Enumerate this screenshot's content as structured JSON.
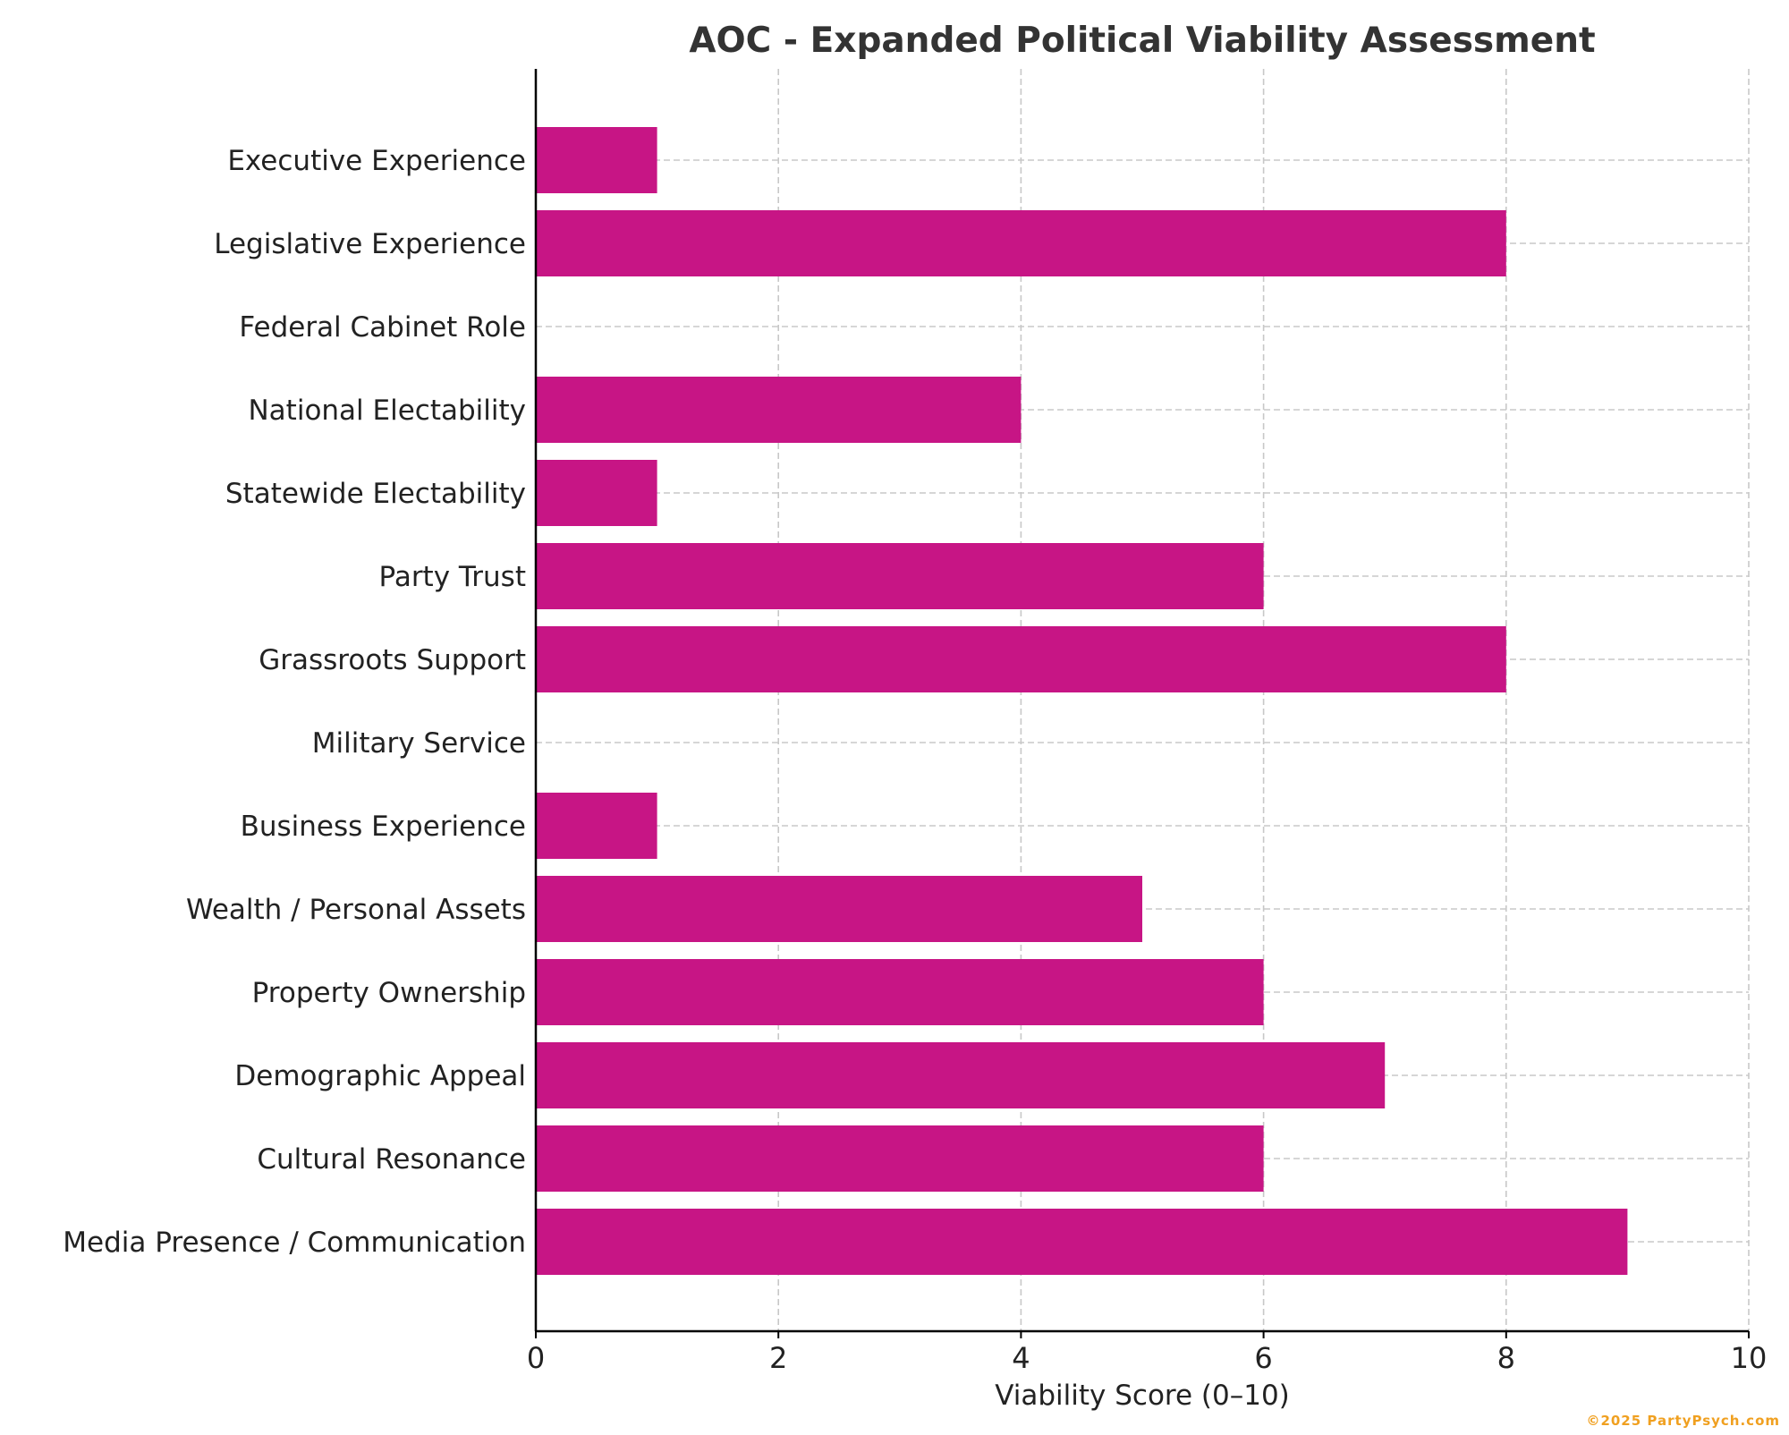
{
  "chart_data": {
    "type": "bar",
    "orientation": "horizontal",
    "title": "AOC - Expanded Political Viability Assessment",
    "xlabel": "Viability Score (0–10)",
    "ylabel": "",
    "xlim": [
      0,
      10
    ],
    "xticks": [
      0,
      2,
      4,
      6,
      8,
      10
    ],
    "grid": true,
    "legend": "none",
    "bar_color": "#c71585",
    "categories": [
      "Executive Experience",
      "Legislative Experience",
      "Federal Cabinet Role",
      "National Electability",
      "Statewide Electability",
      "Party Trust",
      "Grassroots Support",
      "Military Service",
      "Business Experience",
      "Wealth / Personal Assets",
      "Property Ownership",
      "Demographic Appeal",
      "Cultural Resonance",
      "Media Presence / Communication"
    ],
    "values": [
      1,
      8,
      0,
      4,
      1,
      6,
      8,
      0,
      1,
      5,
      6,
      7,
      6,
      9
    ]
  },
  "watermark": {
    "text": "©2025 PartyPsych.com",
    "color": "#f0a020"
  }
}
